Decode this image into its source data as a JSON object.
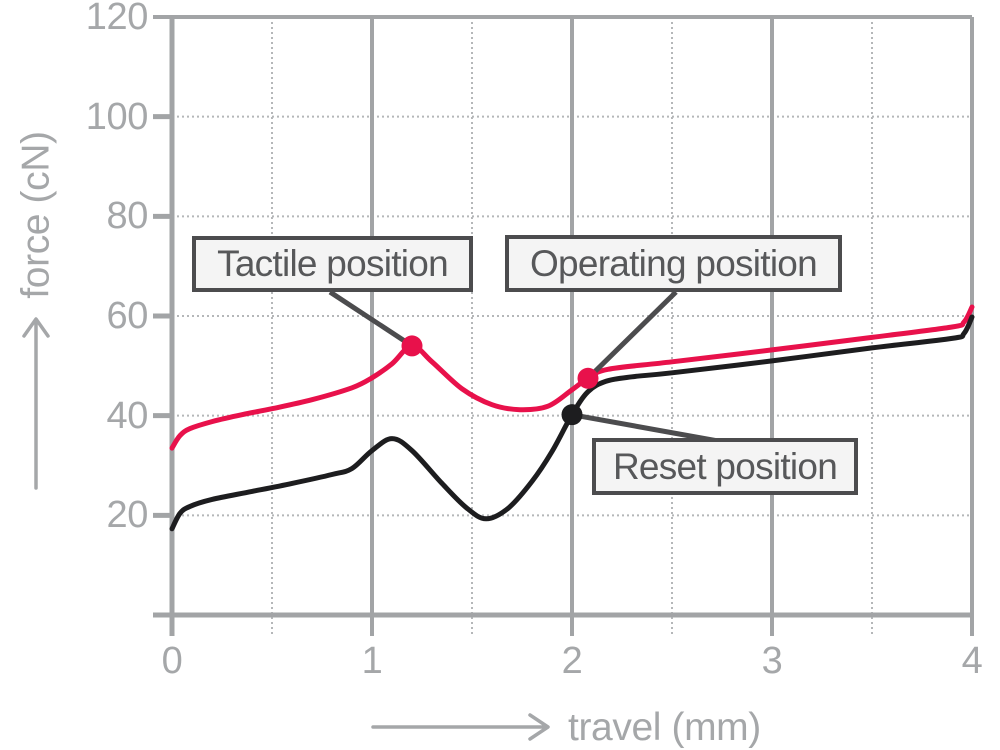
{
  "chart_data": {
    "type": "line",
    "title": "",
    "xlabel": "travel (mm)",
    "ylabel": "force (cN)",
    "xlim": [
      0,
      4
    ],
    "ylim": [
      0,
      120
    ],
    "x_tick_labels": [
      "0",
      "1",
      "2",
      "3",
      "4"
    ],
    "x_tick_values": [
      0,
      1,
      2,
      3,
      4
    ],
    "x_minor_tick_values": [
      0.5,
      1.5,
      2.5,
      3.5
    ],
    "y_tick_labels": [
      "20",
      "40",
      "60",
      "80",
      "100",
      "120"
    ],
    "y_tick_values": [
      20,
      40,
      60,
      80,
      100,
      120
    ],
    "grid": "vertical majors solid, vertical minors dotted, horizontal lines dotted",
    "legend_position": "none",
    "series": [
      {
        "name": "red curve (downstroke force)",
        "color": "#e8114b",
        "points": [
          [
            0,
            33.5
          ],
          [
            0.04,
            36
          ],
          [
            0.09,
            37.4
          ],
          [
            0.2,
            38.8
          ],
          [
            0.35,
            40.2
          ],
          [
            0.5,
            41.4
          ],
          [
            0.7,
            43.2
          ],
          [
            0.9,
            45.6
          ],
          [
            1.0,
            47.6
          ],
          [
            1.1,
            50.4
          ],
          [
            1.2,
            54
          ],
          [
            1.3,
            50.8
          ],
          [
            1.45,
            45.4
          ],
          [
            1.6,
            42.2
          ],
          [
            1.74,
            41.2
          ],
          [
            1.88,
            41.9
          ],
          [
            2.0,
            45.2
          ],
          [
            2.08,
            47.5
          ],
          [
            2.18,
            49.3
          ],
          [
            2.5,
            50.8
          ],
          [
            3.0,
            53.2
          ],
          [
            3.5,
            55.7
          ],
          [
            3.9,
            57.8
          ],
          [
            3.96,
            58.8
          ],
          [
            4.0,
            61.8
          ]
        ]
      },
      {
        "name": "black curve (upstroke force)",
        "color": "#1d1d1f",
        "points": [
          [
            0,
            17.3
          ],
          [
            0.04,
            20.4
          ],
          [
            0.09,
            21.8
          ],
          [
            0.2,
            23.2
          ],
          [
            0.4,
            24.8
          ],
          [
            0.6,
            26.4
          ],
          [
            0.8,
            28.2
          ],
          [
            0.9,
            29.4
          ],
          [
            1.0,
            33
          ],
          [
            1.1,
            35.4
          ],
          [
            1.2,
            33
          ],
          [
            1.35,
            26.4
          ],
          [
            1.47,
            21.6
          ],
          [
            1.57,
            19.3
          ],
          [
            1.68,
            21.4
          ],
          [
            1.8,
            26.8
          ],
          [
            1.9,
            32.8
          ],
          [
            2.0,
            40.2
          ],
          [
            2.08,
            44.8
          ],
          [
            2.17,
            46.9
          ],
          [
            2.3,
            47.8
          ],
          [
            2.5,
            48.6
          ],
          [
            3.0,
            51
          ],
          [
            3.5,
            53.6
          ],
          [
            3.9,
            55.5
          ],
          [
            3.96,
            56.5
          ],
          [
            4.0,
            59.8
          ]
        ]
      }
    ],
    "markers": [
      {
        "label": "Tactile position",
        "x": 1.2,
        "y": 54,
        "color": "#e8114b"
      },
      {
        "label": "Operating position",
        "x": 2.08,
        "y": 47.5,
        "color": "#e8114b"
      },
      {
        "label": "Reset position",
        "x": 2.0,
        "y": 40.2,
        "color": "#1d1d1f"
      }
    ]
  },
  "colors": {
    "axis": "#a2a4a6",
    "grid_dotted": "#b5b7b9",
    "tick_text": "#a5a7a9",
    "annotation_border": "#4c4c4e",
    "annotation_fill": "#f4f4f4",
    "annotation_text": "#57585a",
    "background": "#ffffff"
  }
}
